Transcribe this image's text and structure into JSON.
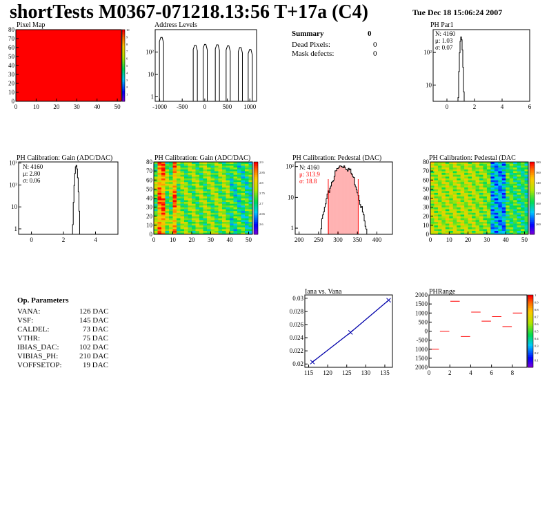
{
  "header": {
    "title": "shortTests M0367-071218.13:56 T+17a (C4)",
    "date": "Tue Dec 18 15:06:24 2007"
  },
  "summary": {
    "label": "Summary",
    "value": "0",
    "rows": [
      {
        "label": "Dead Pixels:",
        "value": "0"
      },
      {
        "label": "Mask defects:",
        "value": "0"
      }
    ]
  },
  "op_params": {
    "label": "Op. Parameters",
    "rows": [
      {
        "label": "VANA:",
        "value": "126 DAC"
      },
      {
        "label": "VSF:",
        "value": "145 DAC"
      },
      {
        "label": "CALDEL:",
        "value": "73 DAC"
      },
      {
        "label": "VTHR:",
        "value": "75 DAC"
      },
      {
        "label": "IBIAS_DAC:",
        "value": "102 DAC"
      },
      {
        "label": "VIBIAS_PH:",
        "value": "210 DAC"
      },
      {
        "label": "VOFFSETOP:",
        "value": "19 DAC"
      }
    ]
  },
  "colors": {
    "pixel_map_fill": "#ff0000",
    "fit_line": "#ff0000",
    "iana_line": "#0000aa"
  },
  "chart_data": [
    {
      "id": "pixel-map",
      "type": "heatmap",
      "title": "Pixel Map",
      "xlim": [
        0,
        52
      ],
      "ylim": [
        0,
        80
      ],
      "xticks": [
        "0",
        "10",
        "20",
        "30",
        "40",
        "50"
      ],
      "yticks": [
        "0",
        "10",
        "20",
        "30",
        "40",
        "50",
        "60",
        "70",
        "80"
      ],
      "zticks": [
        "1",
        "2",
        "3",
        "4",
        "5",
        "6",
        "7",
        "8",
        "9",
        "10"
      ],
      "uniform_value": 10
    },
    {
      "id": "address-levels",
      "type": "bar",
      "title": "Address Levels",
      "xlim": [
        -1100,
        1150
      ],
      "xticks": [
        "-1000",
        "-500",
        "0",
        "500",
        "1000"
      ],
      "ytick_labels": [
        "1",
        "10",
        "10²"
      ],
      "log_y": true,
      "peaks": [
        {
          "x": -960,
          "height": 450
        },
        {
          "x": -210,
          "height": 200
        },
        {
          "x": 10,
          "height": 220
        },
        {
          "x": 280,
          "height": 210
        },
        {
          "x": 520,
          "height": 190
        },
        {
          "x": 790,
          "height": 160
        },
        {
          "x": 1010,
          "height": 130
        }
      ]
    },
    {
      "id": "ph-par1",
      "type": "bar",
      "title": "PH Par1",
      "xlim": [
        -1,
        6
      ],
      "xticks": [
        "0",
        "2",
        "4",
        "6"
      ],
      "ytick_labels": [
        "10",
        "10²"
      ],
      "log_y": true,
      "stats": {
        "n": "N: 4160",
        "mean": "μ: 1.03",
        "sigma": "σ: 0.07"
      },
      "peak": {
        "mean": 1.03,
        "sigma": 0.07,
        "height": 300
      }
    },
    {
      "id": "gain-hist",
      "type": "bar",
      "title": "PH Calibration: Gain (ADC/DAC)",
      "xlim": [
        -0.8,
        5.4
      ],
      "xticks": [
        "0",
        "2",
        "4"
      ],
      "ytick_labels": [
        "1",
        "10",
        "10²",
        "10³"
      ],
      "log_y": true,
      "stats": {
        "n": "N: 4160",
        "mean": "μ: 2.80",
        "sigma": "σ: 0.06"
      },
      "peak": {
        "mean": 2.8,
        "sigma": 0.06,
        "height": 800
      }
    },
    {
      "id": "gain-map",
      "type": "heatmap",
      "title": "PH Calibration: Gain (ADC/DAC)",
      "xlim": [
        0,
        52
      ],
      "ylim": [
        0,
        80
      ],
      "xticks": [
        "0",
        "10",
        "20",
        "30",
        "40",
        "50"
      ],
      "yticks": [
        "0",
        "10",
        "20",
        "30",
        "40",
        "50",
        "60",
        "70",
        "80"
      ],
      "zticks": [
        "2.6",
        "2.65",
        "2.7",
        "2.75",
        "2.8",
        "2.85",
        "2.9"
      ]
    },
    {
      "id": "pedestal-hist",
      "type": "bar",
      "title": "PH Calibration: Pedestal (DAC)",
      "xlim": [
        190,
        440
      ],
      "xticks": [
        "200",
        "250",
        "300",
        "350",
        "400"
      ],
      "ytick_labels": [
        "1",
        "10",
        "10²"
      ],
      "log_y": true,
      "stats": {
        "n": "N: 4160",
        "mean": "μ: 313.9",
        "sigma": "σ: 18.8"
      },
      "peak": {
        "mean": 313.9,
        "sigma": 18.8,
        "height": 95
      },
      "fit_range": [
        275,
        352
      ]
    },
    {
      "id": "pedestal-map",
      "type": "heatmap",
      "title": "PH Calibration: Pedestal (DAC",
      "xlim": [
        0,
        52
      ],
      "ylim": [
        0,
        80
      ],
      "xticks": [
        "0",
        "10",
        "20",
        "30",
        "40",
        "50"
      ],
      "yticks": [
        "0",
        "10",
        "20",
        "30",
        "40",
        "50",
        "60",
        "70",
        "80"
      ],
      "zticks": [
        "260",
        "280",
        "300",
        "320",
        "340",
        "360",
        "380"
      ]
    },
    {
      "id": "iana-vana",
      "type": "line",
      "title": "Iana vs. Vana",
      "xlim": [
        114,
        137
      ],
      "ylim": [
        0.0195,
        0.0305
      ],
      "xticks": [
        "115",
        "120",
        "125",
        "130",
        "135"
      ],
      "yticks": [
        "0.02",
        "0.022",
        "0.024",
        "0.026",
        "0.028",
        "0.03"
      ],
      "x": [
        116,
        126,
        136
      ],
      "y": [
        0.0203,
        0.0248,
        0.0297
      ]
    },
    {
      "id": "ph-range",
      "type": "scatter",
      "title": "PHRange",
      "xlim": [
        0,
        9.4
      ],
      "ylim": [
        -2000,
        2000
      ],
      "xticks": [
        "0",
        "2",
        "4",
        "6",
        "8"
      ],
      "yticks": [
        "2000",
        "1500",
        "1000",
        "500",
        "0",
        "-500",
        "1000",
        "1500",
        "2000"
      ],
      "zticks": [
        "0.1",
        "0.2",
        "0.3",
        "0.4",
        "0.5",
        "0.6",
        "0.7",
        "0.8",
        "0.9",
        "1"
      ],
      "x": [
        0.5,
        1.5,
        2.5,
        3.5,
        4.5,
        5.5,
        6.5,
        7.5,
        8.5
      ],
      "y": [
        -1000,
        0,
        1650,
        -300,
        1050,
        550,
        800,
        250,
        1000
      ]
    }
  ]
}
